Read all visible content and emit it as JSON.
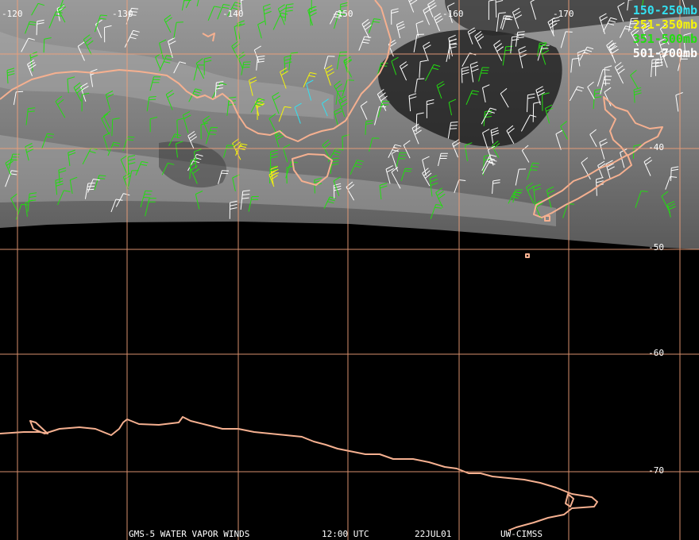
{
  "lon_labels": [
    "-120",
    "-130",
    "-140",
    "-150",
    "-160",
    "-170"
  ],
  "lat_labels": [
    "-40",
    "-50",
    "-60",
    "-70"
  ],
  "legend": [
    {
      "text": "150-250mb",
      "color": "#33e0f0"
    },
    {
      "text": "251-350mb",
      "color": "#f5f50a"
    },
    {
      "text": "351-500mb",
      "color": "#22dd11"
    },
    {
      "text": "501-700mb",
      "color": "#ffffff"
    }
  ],
  "footer": {
    "satellite": "GMS-5 WATER VAPOR WINDS",
    "time": "12:00 UTC",
    "date": "22JUL01",
    "source": "UW-CIMSS"
  },
  "colors": {
    "grid": "#f0a07a",
    "coast": "#f5b090",
    "background": "#000000"
  }
}
